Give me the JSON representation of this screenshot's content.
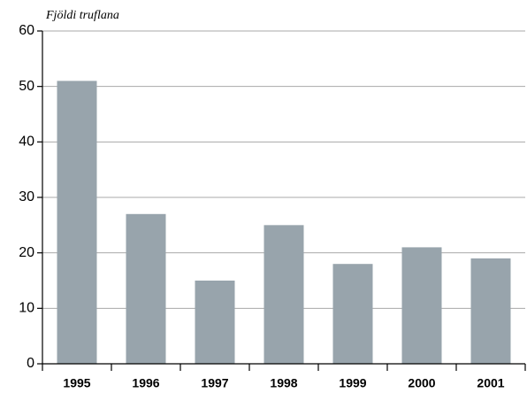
{
  "chart_data": {
    "type": "bar",
    "y_label": "Fjöldi truflana",
    "categories": [
      "1995",
      "1996",
      "1997",
      "1998",
      "1999",
      "2000",
      "2001"
    ],
    "values": [
      51,
      27,
      15,
      25,
      18,
      21,
      19
    ],
    "color": "#98a4ac",
    "ylim": [
      0,
      60
    ],
    "yticks": [
      0,
      10,
      20,
      30,
      40,
      50,
      60
    ],
    "grid": true
  }
}
